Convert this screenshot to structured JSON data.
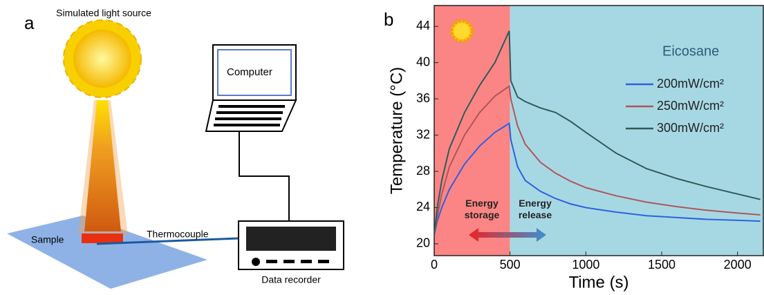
{
  "panel_a": {
    "label": "a",
    "light_source": "Simulated light source",
    "computer": "Computer",
    "sample": "Sample",
    "thermocouple": "Thermocouple",
    "recorder": "Data recorder"
  },
  "chart_data": {
    "type": "line",
    "panel_label": "b",
    "x_label": "Time (s)",
    "y_label": "Temperature (°C)",
    "legend_title": "Eicosane",
    "x": [
      0,
      20,
      50,
      100,
      200,
      300,
      400,
      495,
      505,
      550,
      600,
      700,
      800,
      900,
      1000,
      1200,
      1400,
      1600,
      1800,
      2000,
      2150
    ],
    "series": [
      {
        "name": "200mW/cm²",
        "color": "#2f5fe0",
        "values": [
          21,
          22.5,
          24,
          26,
          28.8,
          30.8,
          32.3,
          33.3,
          31.5,
          28.5,
          27,
          25.8,
          25,
          24.4,
          24,
          23.5,
          23.1,
          22.9,
          22.7,
          22.6,
          22.5
        ]
      },
      {
        "name": "250mW/cm²",
        "color": "#b0555a",
        "values": [
          21,
          23,
          25.5,
          28.5,
          32,
          34.5,
          36.3,
          37.4,
          36,
          33,
          31,
          29,
          27.8,
          26.9,
          26.2,
          25.3,
          24.6,
          24.1,
          23.7,
          23.4,
          23.2
        ]
      },
      {
        "name": "300mW/cm²",
        "color": "#2f5a5a",
        "values": [
          21,
          24,
          27,
          30.5,
          34.5,
          37.5,
          40,
          43.5,
          38,
          36.2,
          35.7,
          35,
          34.5,
          33.5,
          32.3,
          30,
          28.3,
          27.2,
          26.3,
          25.5,
          24.9
        ]
      }
    ],
    "regions": [
      {
        "label": "Energy storage",
        "range": [
          0,
          500
        ],
        "color": "#fb8585"
      },
      {
        "label": "Energy release",
        "range": [
          500,
          2170
        ],
        "color": "#a6d8e4"
      }
    ],
    "xlim": [
      0,
      2170
    ],
    "ylim": [
      18.7,
      46.3
    ],
    "xticks": [
      0,
      500,
      1000,
      1500,
      2000
    ],
    "yticks": [
      20,
      24,
      28,
      32,
      36,
      40,
      44
    ]
  }
}
